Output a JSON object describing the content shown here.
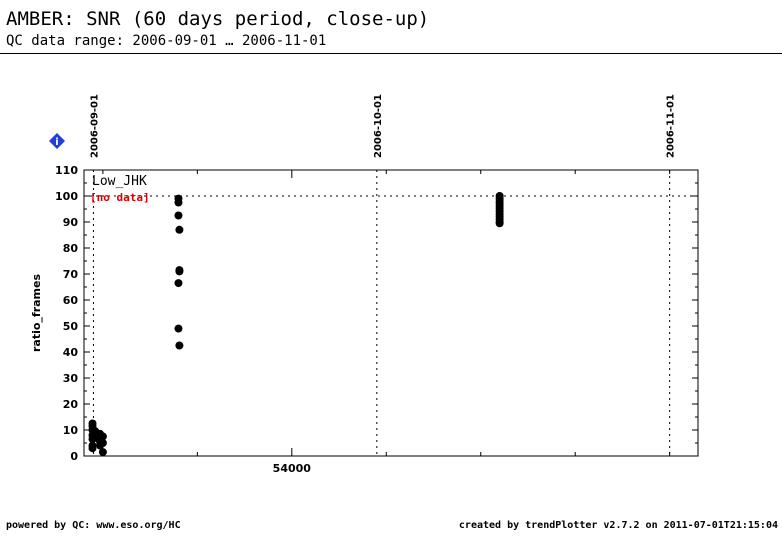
{
  "header": {
    "title": "AMBER: SNR (60 days period, close-up)",
    "subtitle": "QC data range: 2006-09-01 … 2006-11-01"
  },
  "info_badge": {
    "label": "i",
    "color": "#1f3fd6"
  },
  "footer": {
    "left": "powered by QC: www.eso.org/HC",
    "right": "created by trendPlotter v2.7.2 on 2011-07-01T21:15:04"
  },
  "chart_data": {
    "type": "scatter",
    "ylabel": "ratio_frames",
    "xlim": [
      53978,
      54043
    ],
    "ylim": [
      0,
      110
    ],
    "y_ticks": [
      0,
      10,
      20,
      30,
      40,
      50,
      60,
      70,
      80,
      90,
      100,
      110
    ],
    "x_ticks": [
      {
        "value": 54000,
        "label": "54000"
      }
    ],
    "date_markers": [
      {
        "value": 53979,
        "label": "2006-09-01"
      },
      {
        "value": 54009,
        "label": "2006-10-01"
      },
      {
        "value": 54040,
        "label": "2006-11-01"
      }
    ],
    "reference_line": 100,
    "panel_label": "Low_JHK",
    "panel_note": "[no data]",
    "panel_note_color": "#e00000",
    "point_color": "#000000",
    "points": [
      {
        "x": 53978.9,
        "y": 12.5
      },
      {
        "x": 53978.9,
        "y": 11.5
      },
      {
        "x": 53978.9,
        "y": 10.0
      },
      {
        "x": 53978.9,
        "y": 8.0
      },
      {
        "x": 53978.9,
        "y": 6.5
      },
      {
        "x": 53978.9,
        "y": 4.0
      },
      {
        "x": 53978.9,
        "y": 3.0
      },
      {
        "x": 53979.2,
        "y": 9.5
      },
      {
        "x": 53979.2,
        "y": 7.0
      },
      {
        "x": 53979.7,
        "y": 8.5
      },
      {
        "x": 53979.7,
        "y": 5.5
      },
      {
        "x": 53979.7,
        "y": 4.0
      },
      {
        "x": 53980.0,
        "y": 7.5
      },
      {
        "x": 53980.0,
        "y": 5.0
      },
      {
        "x": 53980.0,
        "y": 1.5
      },
      {
        "x": 53988.0,
        "y": 99.0
      },
      {
        "x": 53988.0,
        "y": 97.5
      },
      {
        "x": 53988.0,
        "y": 92.5
      },
      {
        "x": 53988.1,
        "y": 87.0
      },
      {
        "x": 53988.1,
        "y": 71.5
      },
      {
        "x": 53988.1,
        "y": 71.0
      },
      {
        "x": 53988.0,
        "y": 66.5
      },
      {
        "x": 53988.0,
        "y": 49.0
      },
      {
        "x": 53988.1,
        "y": 42.5
      },
      {
        "x": 54022.0,
        "y": 100.0
      },
      {
        "x": 54022.0,
        "y": 99.0
      },
      {
        "x": 54022.0,
        "y": 98.0
      },
      {
        "x": 54022.0,
        "y": 97.0
      },
      {
        "x": 54022.0,
        "y": 96.0
      },
      {
        "x": 54022.0,
        "y": 95.0
      },
      {
        "x": 54022.0,
        "y": 94.0
      },
      {
        "x": 54022.0,
        "y": 93.0
      },
      {
        "x": 54022.0,
        "y": 92.0
      },
      {
        "x": 54022.0,
        "y": 91.0
      },
      {
        "x": 54022.0,
        "y": 90.0
      },
      {
        "x": 54022.0,
        "y": 89.5
      }
    ]
  }
}
